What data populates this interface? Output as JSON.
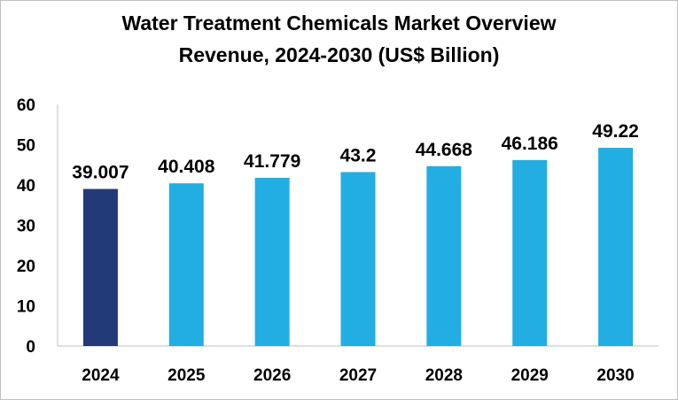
{
  "chart_data": {
    "type": "bar",
    "title": "Water Treatment Chemicals Market Overview",
    "subtitle": "Revenue, 2024-2030 (US$ Billion)",
    "categories": [
      "2024",
      "2025",
      "2026",
      "2027",
      "2028",
      "2029",
      "2030"
    ],
    "values": [
      39.007,
      40.408,
      41.779,
      43.2,
      44.668,
      46.186,
      49.22
    ],
    "data_labels": [
      "39.007",
      "40.408",
      "41.779",
      "43.2",
      "44.668",
      "46.186",
      "49.22"
    ],
    "bar_colors": [
      "#223a78",
      "#22aee2",
      "#22aee2",
      "#22aee2",
      "#22aee2",
      "#22aee2",
      "#22aee2"
    ],
    "ylim": [
      0,
      60
    ],
    "yticks": [
      "0",
      "10",
      "20",
      "30",
      "40",
      "50",
      "60"
    ],
    "grid": false,
    "legend": "none"
  }
}
